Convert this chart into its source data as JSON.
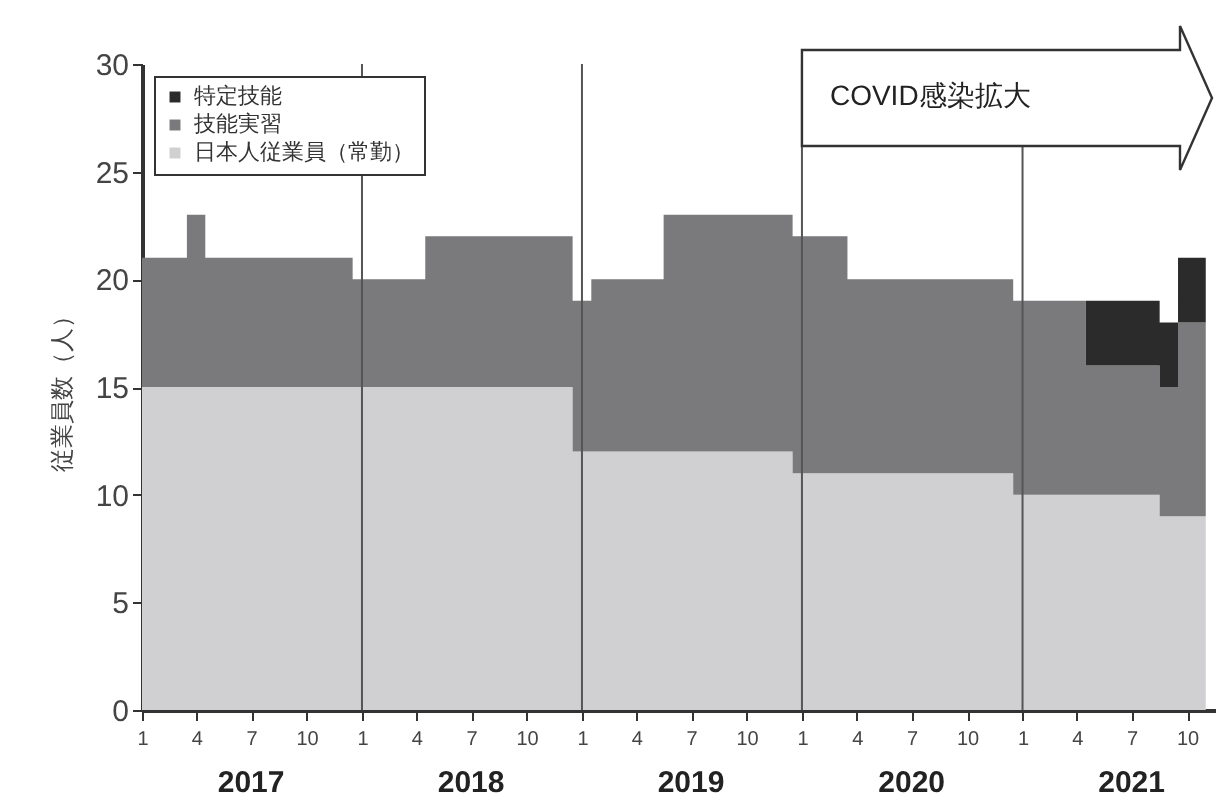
{
  "chart_data": {
    "type": "area",
    "stacked": true,
    "ylabel": "従業員数（人）",
    "x": [
      "2017-01",
      "2017-02",
      "2017-03",
      "2017-04",
      "2017-05",
      "2017-06",
      "2017-07",
      "2017-08",
      "2017-09",
      "2017-10",
      "2017-11",
      "2017-12",
      "2018-01",
      "2018-02",
      "2018-03",
      "2018-04",
      "2018-05",
      "2018-06",
      "2018-07",
      "2018-08",
      "2018-09",
      "2018-10",
      "2018-11",
      "2018-12",
      "2019-01",
      "2019-02",
      "2019-03",
      "2019-04",
      "2019-05",
      "2019-06",
      "2019-07",
      "2019-08",
      "2019-09",
      "2019-10",
      "2019-11",
      "2019-12",
      "2020-01",
      "2020-02",
      "2020-03",
      "2020-04",
      "2020-05",
      "2020-06",
      "2020-07",
      "2020-08",
      "2020-09",
      "2020-10",
      "2020-11",
      "2020-12",
      "2021-01",
      "2021-02",
      "2021-03",
      "2021-04",
      "2021-05",
      "2021-06",
      "2021-07",
      "2021-08",
      "2021-09",
      "2021-10",
      "2021-11"
    ],
    "series": [
      {
        "name": "日本人従業員（常勤）",
        "color": "#d0d0d2",
        "values": [
          15,
          15,
          15,
          15,
          15,
          15,
          15,
          15,
          15,
          15,
          15,
          15,
          15,
          15,
          15,
          15,
          15,
          15,
          15,
          15,
          15,
          15,
          15,
          15,
          12,
          12,
          12,
          12,
          12,
          12,
          12,
          12,
          12,
          12,
          12,
          12,
          11,
          11,
          11,
          11,
          11,
          11,
          11,
          11,
          11,
          11,
          11,
          11,
          10,
          10,
          10,
          10,
          10,
          10,
          10,
          10,
          9,
          9,
          9
        ]
      },
      {
        "name": "技能実習",
        "color": "#7a7a7c",
        "values": [
          6,
          6,
          6,
          8,
          6,
          6,
          6,
          6,
          6,
          6,
          6,
          6,
          5,
          5,
          5,
          5,
          7,
          7,
          7,
          7,
          7,
          7,
          7,
          7,
          7,
          8,
          8,
          8,
          8,
          11,
          11,
          11,
          11,
          11,
          11,
          11,
          11,
          11,
          11,
          9,
          9,
          9,
          9,
          9,
          9,
          9,
          9,
          9,
          9,
          9,
          9,
          9,
          6,
          6,
          6,
          6,
          6,
          9,
          9
        ]
      },
      {
        "name": "特定技能",
        "color": "#2b2b2b",
        "values": [
          0,
          0,
          0,
          0,
          0,
          0,
          0,
          0,
          0,
          0,
          0,
          0,
          0,
          0,
          0,
          0,
          0,
          0,
          0,
          0,
          0,
          0,
          0,
          0,
          0,
          0,
          0,
          0,
          0,
          0,
          0,
          0,
          0,
          0,
          0,
          0,
          0,
          0,
          0,
          0,
          0,
          0,
          0,
          0,
          0,
          0,
          0,
          0,
          0,
          0,
          0,
          0,
          3,
          3,
          3,
          3,
          3,
          3,
          3
        ]
      }
    ],
    "xlim": [
      "2017-01",
      "2021-11-18"
    ],
    "xticks": [
      {
        "value": "2017-01",
        "label": "1"
      },
      {
        "value": "2017-04",
        "label": "4"
      },
      {
        "value": "2017-07",
        "label": "7"
      },
      {
        "value": "2017-10",
        "label": "10"
      },
      {
        "value": "2018-01",
        "label": "1"
      },
      {
        "value": "2018-04",
        "label": "4"
      },
      {
        "value": "2018-07",
        "label": "7"
      },
      {
        "value": "2018-10",
        "label": "10"
      },
      {
        "value": "2019-01",
        "label": "1"
      },
      {
        "value": "2019-04",
        "label": "4"
      },
      {
        "value": "2019-07",
        "label": "7"
      },
      {
        "value": "2019-10",
        "label": "10"
      },
      {
        "value": "2020-01",
        "label": "1"
      },
      {
        "value": "2020-04",
        "label": "4"
      },
      {
        "value": "2020-07",
        "label": "7"
      },
      {
        "value": "2020-10",
        "label": "10"
      },
      {
        "value": "2021-01",
        "label": "1"
      },
      {
        "value": "2021-04",
        "label": "4"
      },
      {
        "value": "2021-07",
        "label": "7"
      },
      {
        "value": "2021-10",
        "label": "10"
      }
    ],
    "ylim": [
      0,
      30
    ],
    "yticks": [
      0,
      5,
      10,
      15,
      20,
      25,
      30
    ],
    "ref_lines": [
      {
        "axis": "x",
        "value": "2018-01",
        "color": "#555555"
      },
      {
        "axis": "x",
        "value": "2019-01",
        "color": "#555555"
      },
      {
        "axis": "x",
        "value": "2020-01",
        "color": "#555555",
        "label": "COVID感染拡大"
      },
      {
        "axis": "x",
        "value": "2021-01",
        "color": "#555555"
      }
    ],
    "annotations": [
      "2017",
      "2018",
      "2019",
      "2020",
      "2021"
    ],
    "grid": false,
    "legend": "top left"
  }
}
